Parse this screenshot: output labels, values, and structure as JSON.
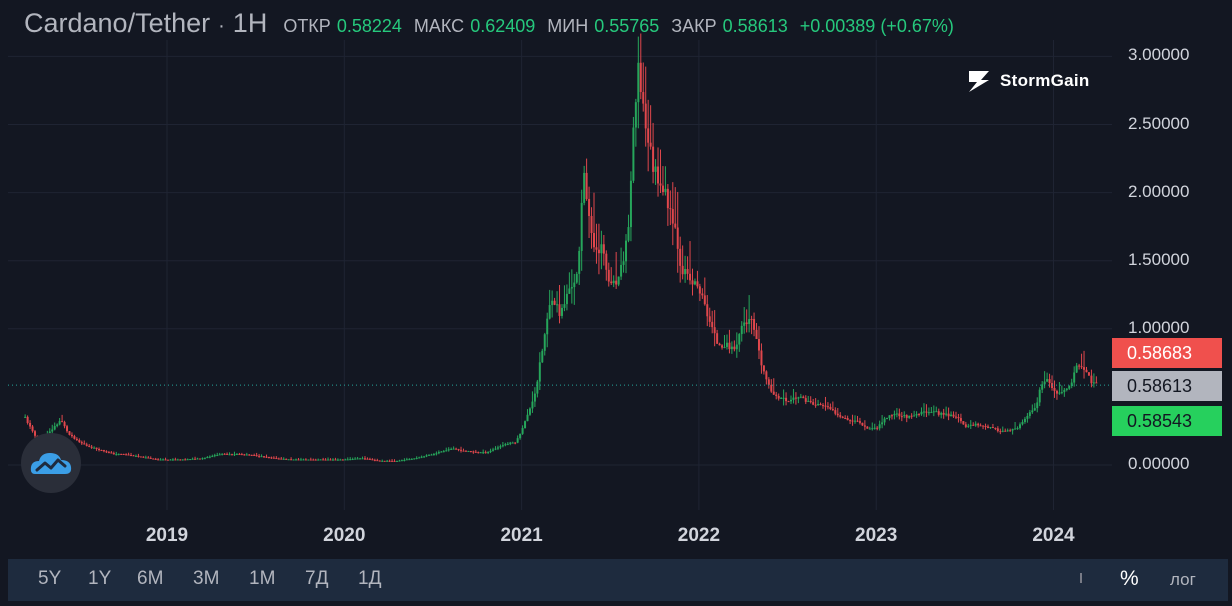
{
  "header": {
    "symbol": "Cardano/Tether",
    "separator": "·",
    "resolution": "1Н",
    "open_label": "ОТКР",
    "open_value": "0.58224",
    "high_label": "МАКС",
    "high_value": "0.62409",
    "low_label": "МИН",
    "low_value": "0.55765",
    "close_label": "ЗАКР",
    "close_value": "0.58613",
    "change": "+0.00389 (+0.67%)",
    "value_color": "#26c97d"
  },
  "brand": {
    "name": "StormGain",
    "icon": "lightning-s-icon"
  },
  "price_tags": {
    "ask": "0.58683",
    "last": "0.58613",
    "bid": "0.58543",
    "ask_color": "#f0504d",
    "last_color": "#b2b5be",
    "bid_color": "#26d05d"
  },
  "colors": {
    "up": "#26a65b",
    "down": "#e0474c",
    "background": "#131722",
    "grid": "#1f2433"
  },
  "toolbar": {
    "timeframes": [
      "5Y",
      "1Y",
      "6M",
      "3M",
      "1M",
      "7Д",
      "1Д"
    ],
    "percent_label": "%",
    "log_label": "лог"
  },
  "float_badge": {
    "icon": "cloud-chart-icon"
  },
  "chart_data": {
    "type": "candlestick",
    "title": "Cardano/Tether",
    "y_tick_labels": [
      "3.00000",
      "2.50000",
      "2.00000",
      "1.50000",
      "1.00000",
      "0.00000"
    ],
    "y_ticks": [
      3.0,
      2.5,
      2.0,
      1.5,
      1.0,
      0.0
    ],
    "x_tick_labels": [
      "2019",
      "2020",
      "2021",
      "2022",
      "2023",
      "2024"
    ],
    "ylim": [
      -0.2,
      3.1
    ],
    "xlim": [
      2018.2,
      2024.25
    ],
    "grid": true,
    "last_price": 0.58613,
    "closes": [
      [
        2018.2,
        0.35
      ],
      [
        2018.25,
        0.22
      ],
      [
        2018.3,
        0.18
      ],
      [
        2018.35,
        0.26
      ],
      [
        2018.4,
        0.33
      ],
      [
        2018.45,
        0.22
      ],
      [
        2018.5,
        0.17
      ],
      [
        2018.55,
        0.14
      ],
      [
        2018.6,
        0.12
      ],
      [
        2018.65,
        0.1
      ],
      [
        2018.7,
        0.08
      ],
      [
        2018.75,
        0.08
      ],
      [
        2018.8,
        0.07
      ],
      [
        2018.85,
        0.06
      ],
      [
        2018.9,
        0.05
      ],
      [
        2018.95,
        0.04
      ],
      [
        2019.0,
        0.04
      ],
      [
        2019.1,
        0.04
      ],
      [
        2019.2,
        0.05
      ],
      [
        2019.3,
        0.08
      ],
      [
        2019.4,
        0.08
      ],
      [
        2019.5,
        0.07
      ],
      [
        2019.6,
        0.05
      ],
      [
        2019.7,
        0.04
      ],
      [
        2019.8,
        0.04
      ],
      [
        2019.9,
        0.04
      ],
      [
        2020.0,
        0.04
      ],
      [
        2020.1,
        0.05
      ],
      [
        2020.2,
        0.03
      ],
      [
        2020.3,
        0.03
      ],
      [
        2020.4,
        0.05
      ],
      [
        2020.5,
        0.08
      ],
      [
        2020.6,
        0.12
      ],
      [
        2020.7,
        0.1
      ],
      [
        2020.8,
        0.09
      ],
      [
        2020.9,
        0.15
      ],
      [
        2020.97,
        0.17
      ],
      [
        2021.03,
        0.35
      ],
      [
        2021.08,
        0.55
      ],
      [
        2021.13,
        0.95
      ],
      [
        2021.17,
        1.25
      ],
      [
        2021.22,
        1.1
      ],
      [
        2021.27,
        1.3
      ],
      [
        2021.32,
        1.4
      ],
      [
        2021.35,
        2.2
      ],
      [
        2021.4,
        1.6
      ],
      [
        2021.45,
        1.6
      ],
      [
        2021.5,
        1.3
      ],
      [
        2021.55,
        1.35
      ],
      [
        2021.6,
        1.7
      ],
      [
        2021.63,
        2.4
      ],
      [
        2021.66,
        2.9
      ],
      [
        2021.7,
        2.5
      ],
      [
        2021.74,
        2.2
      ],
      [
        2021.78,
        2.1
      ],
      [
        2021.82,
        1.95
      ],
      [
        2021.86,
        1.8
      ],
      [
        2021.9,
        1.45
      ],
      [
        2021.95,
        1.35
      ],
      [
        2022.0,
        1.3
      ],
      [
        2022.05,
        1.1
      ],
      [
        2022.1,
        0.9
      ],
      [
        2022.15,
        0.88
      ],
      [
        2022.2,
        0.85
      ],
      [
        2022.25,
        1.05
      ],
      [
        2022.3,
        1.05
      ],
      [
        2022.35,
        0.75
      ],
      [
        2022.4,
        0.55
      ],
      [
        2022.45,
        0.5
      ],
      [
        2022.5,
        0.47
      ],
      [
        2022.55,
        0.5
      ],
      [
        2022.6,
        0.48
      ],
      [
        2022.65,
        0.44
      ],
      [
        2022.7,
        0.44
      ],
      [
        2022.75,
        0.4
      ],
      [
        2022.8,
        0.36
      ],
      [
        2022.85,
        0.33
      ],
      [
        2022.9,
        0.32
      ],
      [
        2022.95,
        0.27
      ],
      [
        2023.0,
        0.27
      ],
      [
        2023.05,
        0.34
      ],
      [
        2023.1,
        0.38
      ],
      [
        2023.15,
        0.36
      ],
      [
        2023.2,
        0.35
      ],
      [
        2023.25,
        0.38
      ],
      [
        2023.3,
        0.4
      ],
      [
        2023.35,
        0.38
      ],
      [
        2023.4,
        0.37
      ],
      [
        2023.45,
        0.36
      ],
      [
        2023.5,
        0.28
      ],
      [
        2023.55,
        0.3
      ],
      [
        2023.6,
        0.29
      ],
      [
        2023.65,
        0.27
      ],
      [
        2023.7,
        0.25
      ],
      [
        2023.75,
        0.25
      ],
      [
        2023.8,
        0.27
      ],
      [
        2023.85,
        0.36
      ],
      [
        2023.9,
        0.42
      ],
      [
        2023.93,
        0.58
      ],
      [
        2023.96,
        0.62
      ],
      [
        2024.0,
        0.55
      ],
      [
        2024.05,
        0.52
      ],
      [
        2024.08,
        0.57
      ],
      [
        2024.11,
        0.64
      ],
      [
        2024.14,
        0.75
      ],
      [
        2024.17,
        0.7
      ],
      [
        2024.2,
        0.64
      ],
      [
        2024.23,
        0.59
      ]
    ]
  }
}
